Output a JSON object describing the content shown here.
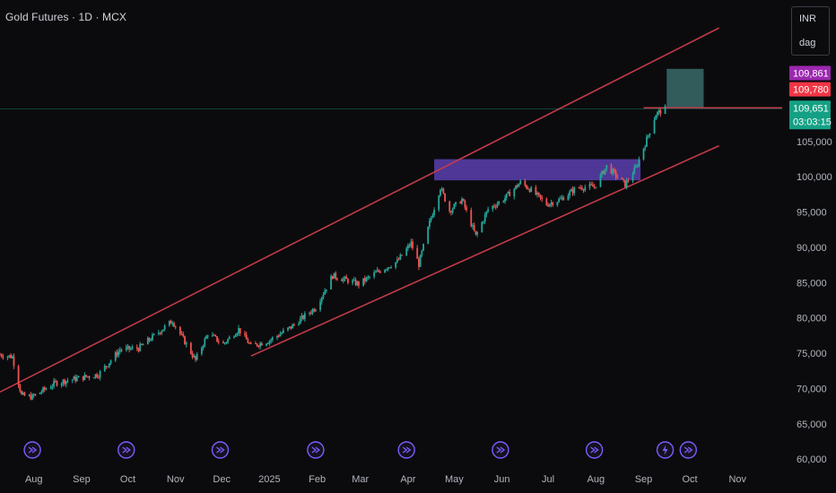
{
  "header": {
    "title": "Gold Futures · 1D · MCX"
  },
  "currency_box": {
    "currency": "INR",
    "unit": "dag"
  },
  "colors": {
    "background": "#0b0b0d",
    "up": "#26a69a",
    "down": "#ef5350",
    "channel": "#c23b47",
    "zone": "#5b3fb0",
    "target_box": "#3a6a6a",
    "event_icon": "#7c5cff",
    "last_price_tag": "#14a085",
    "high_tag": "#9c27b0",
    "mid_tag": "#f23645"
  },
  "chart_data": {
    "type": "candlestick",
    "title": "Gold Futures · 1D · MCX",
    "currency": "INR",
    "unit": "dag",
    "y_axis": {
      "ticks": [
        60000,
        65000,
        70000,
        75000,
        80000,
        85000,
        90000,
        95000,
        100000,
        105000
      ],
      "tick_labels": [
        "60,000",
        "65,000",
        "70,000",
        "75,000",
        "80,000",
        "85,000",
        "90,000",
        "95,000",
        "100,000",
        "105,000"
      ],
      "range": [
        59000,
        121500
      ]
    },
    "x_axis": {
      "labels": [
        "Aug",
        "Sep",
        "Oct",
        "Nov",
        "Dec",
        "2025",
        "Feb",
        "Mar",
        "Apr",
        "May",
        "Jun",
        "Jul",
        "Aug",
        "Sep",
        "Oct",
        "Nov"
      ],
      "dates": [
        "2024-08-01",
        "2024-09-01",
        "2024-10-01",
        "2024-11-01",
        "2024-12-01",
        "2025-01-01",
        "2025-02-01",
        "2025-03-01",
        "2025-04-01",
        "2025-05-01",
        "2025-06-01",
        "2025-07-01",
        "2025-08-01",
        "2025-09-01",
        "2025-10-01",
        "2025-11-01"
      ],
      "start": "2024-07-10",
      "end": "2025-11-30"
    },
    "price_path": [
      [
        "2024-07-10",
        74800
      ],
      [
        "2024-07-18",
        74500
      ],
      [
        "2024-07-24",
        69000
      ],
      [
        "2024-07-31",
        68800
      ],
      [
        "2024-08-15",
        70800
      ],
      [
        "2024-08-31",
        71500
      ],
      [
        "2024-09-12",
        72000
      ],
      [
        "2024-09-26",
        75500
      ],
      [
        "2024-10-08",
        75700
      ],
      [
        "2024-10-20",
        77800
      ],
      [
        "2024-10-30",
        79600
      ],
      [
        "2024-11-06",
        77000
      ],
      [
        "2024-11-14",
        74000
      ],
      [
        "2024-11-22",
        77800
      ],
      [
        "2024-12-02",
        76300
      ],
      [
        "2024-12-12",
        78400
      ],
      [
        "2024-12-20",
        76000
      ],
      [
        "2025-01-01",
        76800
      ],
      [
        "2025-01-15",
        78700
      ],
      [
        "2025-01-31",
        81500
      ],
      [
        "2025-02-11",
        86000
      ],
      [
        "2025-02-28",
        84800
      ],
      [
        "2025-03-12",
        86500
      ],
      [
        "2025-03-25",
        88000
      ],
      [
        "2025-04-03",
        90600
      ],
      [
        "2025-04-08",
        87600
      ],
      [
        "2025-04-15",
        93500
      ],
      [
        "2025-04-22",
        98500
      ],
      [
        "2025-04-28",
        95200
      ],
      [
        "2025-05-06",
        96800
      ],
      [
        "2025-05-15",
        91600
      ],
      [
        "2025-05-23",
        95400
      ],
      [
        "2025-06-02",
        96800
      ],
      [
        "2025-06-13",
        99200
      ],
      [
        "2025-06-19",
        98300
      ],
      [
        "2025-06-30",
        96100
      ],
      [
        "2025-07-09",
        96800
      ],
      [
        "2025-07-20",
        98500
      ],
      [
        "2025-07-31",
        98600
      ],
      [
        "2025-08-08",
        101500
      ],
      [
        "2025-08-20",
        98900
      ],
      [
        "2025-08-27",
        101300
      ],
      [
        "2025-09-02",
        104700
      ],
      [
        "2025-09-09",
        108900
      ],
      [
        "2025-09-15",
        109651
      ]
    ],
    "channel_lines": [
      {
        "role": "upper",
        "from": [
          "2024-07-10",
          69500
        ],
        "to": [
          "2025-10-20",
          121100
        ]
      },
      {
        "role": "lower",
        "from": [
          "2024-12-20",
          74600
        ],
        "to": [
          "2025-10-20",
          104400
        ]
      }
    ],
    "horizontal_line": {
      "from": "2025-09-01",
      "to": "2025-11-30",
      "price": 109780
    },
    "price_line": 109651,
    "zones": [
      {
        "from": "2025-04-18",
        "to": "2025-08-30",
        "low": 99500,
        "high": 102500
      },
      {
        "from": "2025-09-16",
        "to": "2025-10-10",
        "low": 109780,
        "high": 115300
      }
    ],
    "price_tags": [
      {
        "label": "109,861",
        "price": 114700,
        "color": "#9c27b0"
      },
      {
        "label": "109,780",
        "price": 112400,
        "color": "#f23645"
      },
      {
        "label": "109,651",
        "price": 109651,
        "color": "#14a085",
        "sub": "03:03:15"
      }
    ],
    "event_markers": [
      {
        "date": "2024-07-31",
        "kind": "dividend"
      },
      {
        "date": "2024-09-30",
        "kind": "dividend"
      },
      {
        "date": "2024-11-30",
        "kind": "dividend"
      },
      {
        "date": "2025-01-31",
        "kind": "dividend"
      },
      {
        "date": "2025-03-31",
        "kind": "dividend"
      },
      {
        "date": "2025-05-31",
        "kind": "dividend"
      },
      {
        "date": "2025-07-31",
        "kind": "dividend"
      },
      {
        "date": "2025-09-15",
        "kind": "flash"
      },
      {
        "date": "2025-09-30",
        "kind": "dividend"
      }
    ]
  }
}
